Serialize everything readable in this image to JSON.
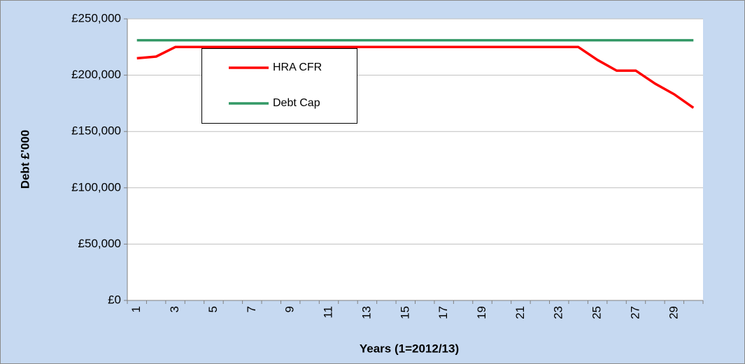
{
  "chart_data": {
    "type": "line",
    "xlabel": "Years (1=2012/13)",
    "ylabel": "Debt £'000",
    "categories": [
      "1",
      null,
      "3",
      null,
      "5",
      null,
      "7",
      null,
      "9",
      null,
      "11",
      null,
      "13",
      null,
      "15",
      null,
      "17",
      null,
      "19",
      null,
      "21",
      null,
      "23",
      null,
      "25",
      null,
      "27",
      null,
      "29",
      null
    ],
    "series": [
      {
        "name": "HRA CFR",
        "color": "#ff0000",
        "values": [
          215000,
          216500,
          225000,
          225000,
          225000,
          225000,
          225000,
          225000,
          225000,
          225000,
          225000,
          225000,
          225000,
          225000,
          225000,
          225000,
          225000,
          225000,
          225000,
          225000,
          225000,
          225000,
          225000,
          225000,
          213500,
          204000,
          204000,
          192500,
          183000,
          171000
        ]
      },
      {
        "name": "Debt Cap",
        "color": "#339966",
        "values": [
          231000,
          231000,
          231000,
          231000,
          231000,
          231000,
          231000,
          231000,
          231000,
          231000,
          231000,
          231000,
          231000,
          231000,
          231000,
          231000,
          231000,
          231000,
          231000,
          231000,
          231000,
          231000,
          231000,
          231000,
          231000,
          231000,
          231000,
          231000,
          231000,
          231000
        ]
      }
    ],
    "ylim": [
      0,
      250000
    ],
    "yticks": [
      {
        "value": 0,
        "label": "£0"
      },
      {
        "value": 50000,
        "label": "£50,000"
      },
      {
        "value": 100000,
        "label": "£100,000"
      },
      {
        "value": 150000,
        "label": "£150,000"
      },
      {
        "value": 200000,
        "label": "£200,000"
      },
      {
        "value": 250000,
        "label": "£250,000"
      }
    ],
    "grid": true,
    "legend": "upper left"
  }
}
